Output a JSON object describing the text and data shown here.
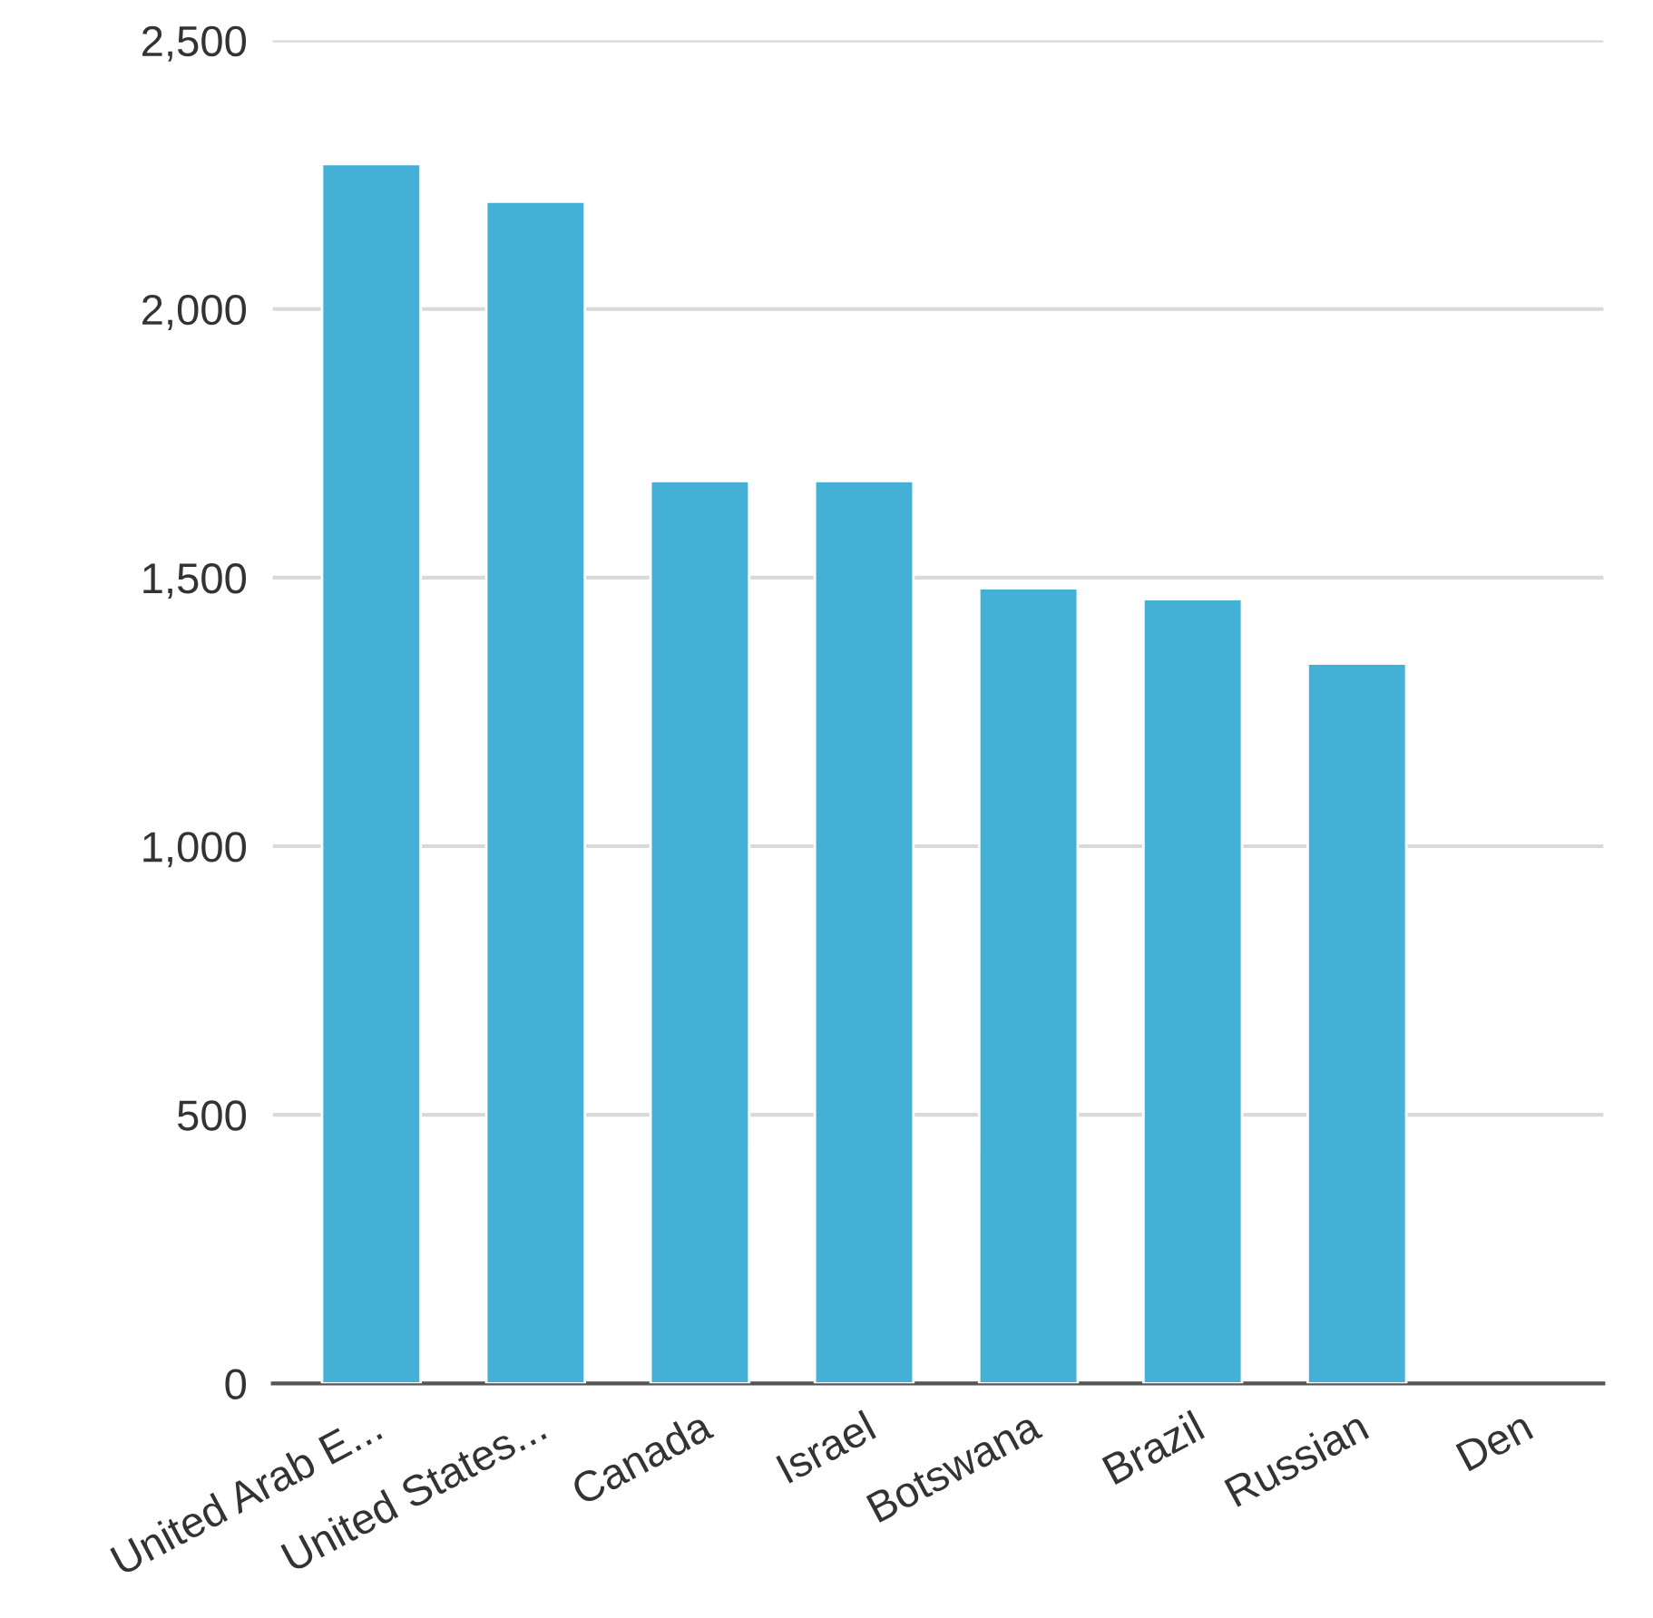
{
  "chart_data": {
    "type": "bar",
    "categories": [
      "United Arab E...",
      "United States...",
      "Canada",
      "Israel",
      "Botswana",
      "Brazil",
      "Russian",
      "Den"
    ],
    "values": [
      2270,
      2200,
      1680,
      1680,
      1480,
      1460,
      1340,
      null
    ],
    "color": "#45b0d6",
    "ylim": [
      0,
      2500
    ],
    "yticks": [
      {
        "value": 0,
        "label": "0"
      },
      {
        "value": 500,
        "label": "500"
      },
      {
        "value": 1000,
        "label": "1,000"
      },
      {
        "value": 1500,
        "label": "1,500"
      },
      {
        "value": 2000,
        "label": "2,000"
      },
      {
        "value": 2500,
        "label": "2,500"
      }
    ],
    "grid": "y",
    "legend": false
  }
}
